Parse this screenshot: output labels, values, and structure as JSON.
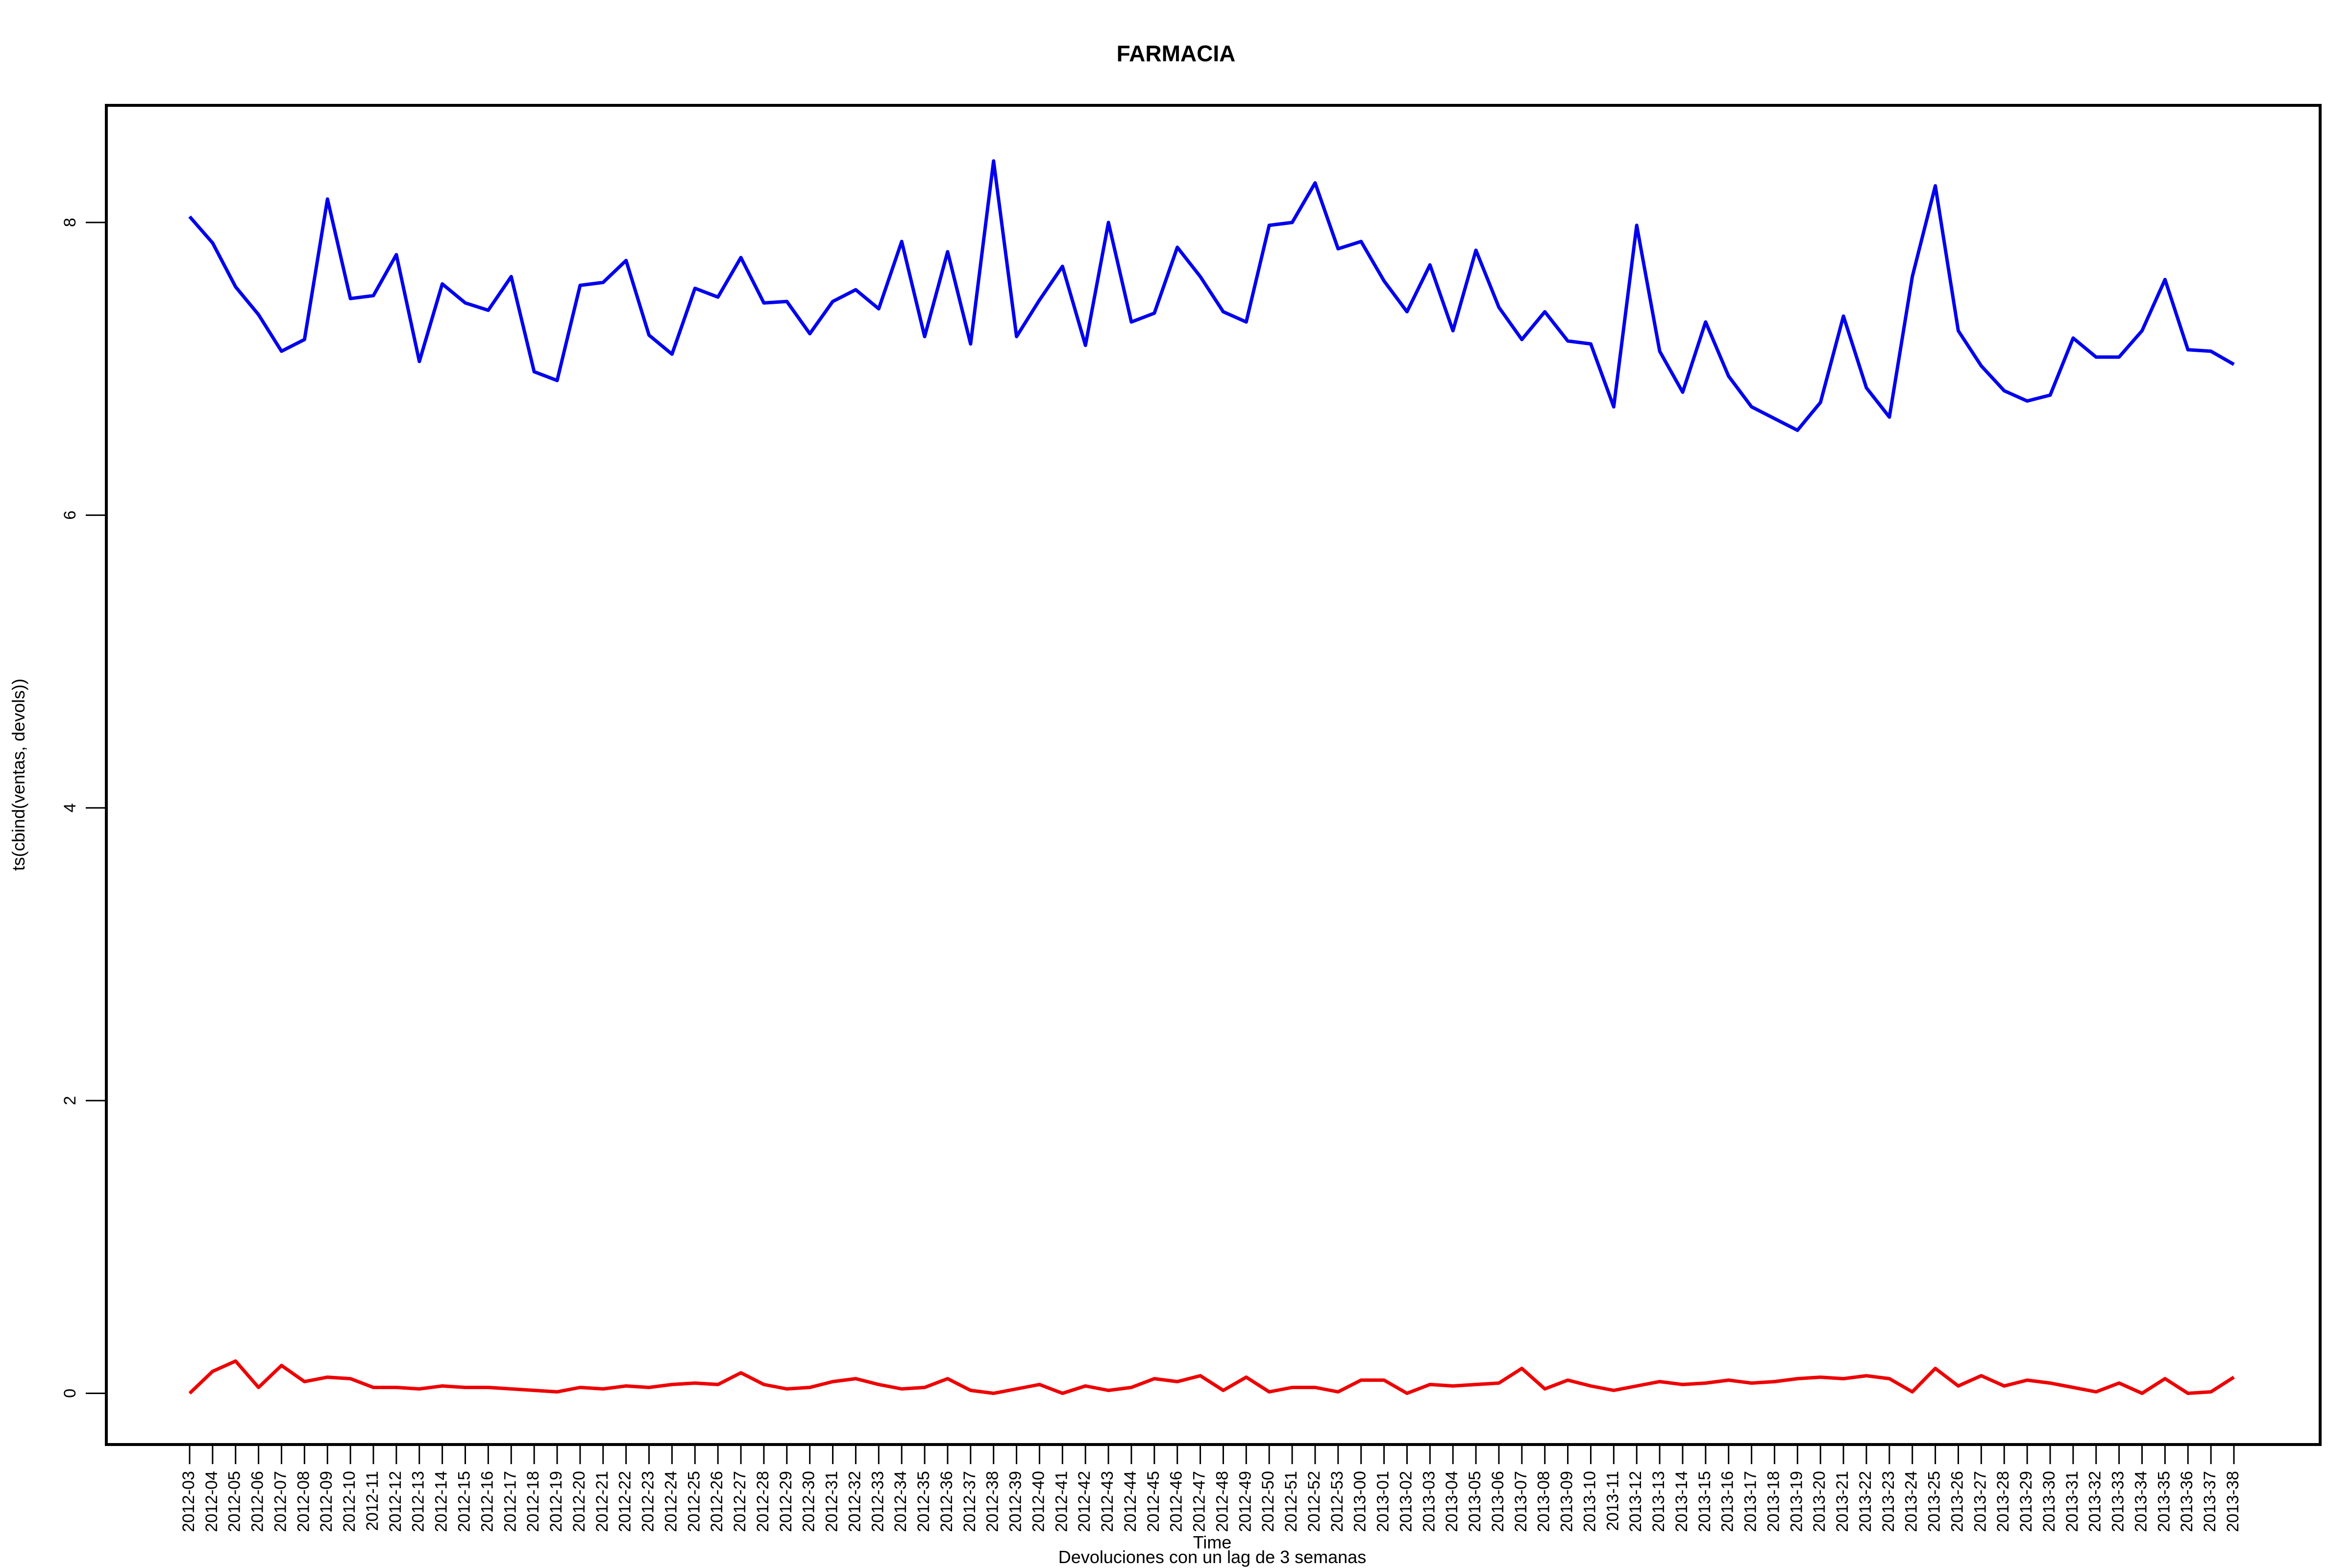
{
  "chart_data": {
    "type": "line",
    "title": "FARMACIA",
    "xlabel": "Time",
    "ylabel": "ts(cbind(ventas, devols))",
    "subtitle": "Devoluciones con un lag de 3 semanas",
    "ylim": [
      -0.35,
      8.8
    ],
    "yticks": [
      0,
      2,
      4,
      6,
      8
    ],
    "grid": false,
    "legend": "none",
    "categories": [
      "2012-03",
      "2012-04",
      "2012-05",
      "2012-06",
      "2012-07",
      "2012-08",
      "2012-09",
      "2012-10",
      "2012-11",
      "2012-12",
      "2012-13",
      "2012-14",
      "2012-15",
      "2012-16",
      "2012-17",
      "2012-18",
      "2012-19",
      "2012-20",
      "2012-21",
      "2012-22",
      "2012-23",
      "2012-24",
      "2012-25",
      "2012-26",
      "2012-27",
      "2012-28",
      "2012-29",
      "2012-30",
      "2012-31",
      "2012-32",
      "2012-33",
      "2012-34",
      "2012-35",
      "2012-36",
      "2012-37",
      "2012-38",
      "2012-39",
      "2012-40",
      "2012-41",
      "2012-42",
      "2012-43",
      "2012-44",
      "2012-45",
      "2012-46",
      "2012-47",
      "2012-48",
      "2012-49",
      "2012-50",
      "2012-51",
      "2012-52",
      "2012-53",
      "2013-00",
      "2013-01",
      "2013-02",
      "2013-03",
      "2013-04",
      "2013-05",
      "2013-06",
      "2013-07",
      "2013-08",
      "2013-09",
      "2013-10",
      "2013-11",
      "2013-12",
      "2013-13",
      "2013-14",
      "2013-15",
      "2013-16",
      "2013-17",
      "2013-18",
      "2013-19",
      "2013-20",
      "2013-21",
      "2013-22",
      "2013-23",
      "2013-24",
      "2013-25",
      "2013-26",
      "2013-27",
      "2013-28",
      "2013-29",
      "2013-30",
      "2013-31",
      "2013-32",
      "2013-33",
      "2013-34",
      "2013-35",
      "2013-36",
      "2013-37",
      "2013-38"
    ],
    "series": [
      {
        "color": "#0000ee",
        "values": [
          8.04,
          7.86,
          7.56,
          7.37,
          7.12,
          7.2,
          8.16,
          7.48,
          7.5,
          7.78,
          7.05,
          7.58,
          7.45,
          7.4,
          7.63,
          6.98,
          6.92,
          7.57,
          7.59,
          7.74,
          7.23,
          7.1,
          7.55,
          7.49,
          7.76,
          7.45,
          7.46,
          7.24,
          7.46,
          7.54,
          7.41,
          7.87,
          7.22,
          7.8,
          7.17,
          8.42,
          7.22,
          7.47,
          7.7,
          7.16,
          8.0,
          7.32,
          7.38,
          7.83,
          7.63,
          7.39,
          7.32,
          7.98,
          8.0,
          8.27,
          7.82,
          7.87,
          7.6,
          7.39,
          7.71,
          7.26,
          7.81,
          7.42,
          7.2,
          7.39,
          7.19,
          7.17,
          6.74,
          7.98,
          7.12,
          6.84,
          7.32,
          6.95,
          6.74,
          6.66,
          6.58,
          6.77,
          7.36,
          6.87,
          6.67,
          7.63,
          8.25,
          7.26,
          7.02,
          6.85,
          6.78,
          6.82,
          7.21,
          7.08,
          7.08,
          7.26,
          7.61,
          7.13,
          7.12,
          7.03
        ]
      },
      {
        "color": "#ee0000",
        "values": [
          0.0,
          0.15,
          0.22,
          0.04,
          0.19,
          0.08,
          0.11,
          0.1,
          0.04,
          0.04,
          0.03,
          0.05,
          0.04,
          0.04,
          0.03,
          0.02,
          0.01,
          0.04,
          0.03,
          0.05,
          0.04,
          0.06,
          0.07,
          0.06,
          0.14,
          0.06,
          0.03,
          0.04,
          0.08,
          0.1,
          0.06,
          0.03,
          0.04,
          0.1,
          0.02,
          0.0,
          0.03,
          0.06,
          0.0,
          0.05,
          0.02,
          0.04,
          0.1,
          0.08,
          0.12,
          0.02,
          0.11,
          0.01,
          0.04,
          0.04,
          0.01,
          0.09,
          0.09,
          0.0,
          0.06,
          0.05,
          0.06,
          0.07,
          0.17,
          0.03,
          0.09,
          0.05,
          0.02,
          0.05,
          0.08,
          0.06,
          0.07,
          0.09,
          0.07,
          0.08,
          0.1,
          0.11,
          0.1,
          0.12,
          0.1,
          0.01,
          0.17,
          0.05,
          0.12,
          0.05,
          0.09,
          0.07,
          0.04,
          0.01,
          0.07,
          0.0,
          0.1,
          0.0,
          0.01,
          0.11
        ]
      }
    ]
  }
}
